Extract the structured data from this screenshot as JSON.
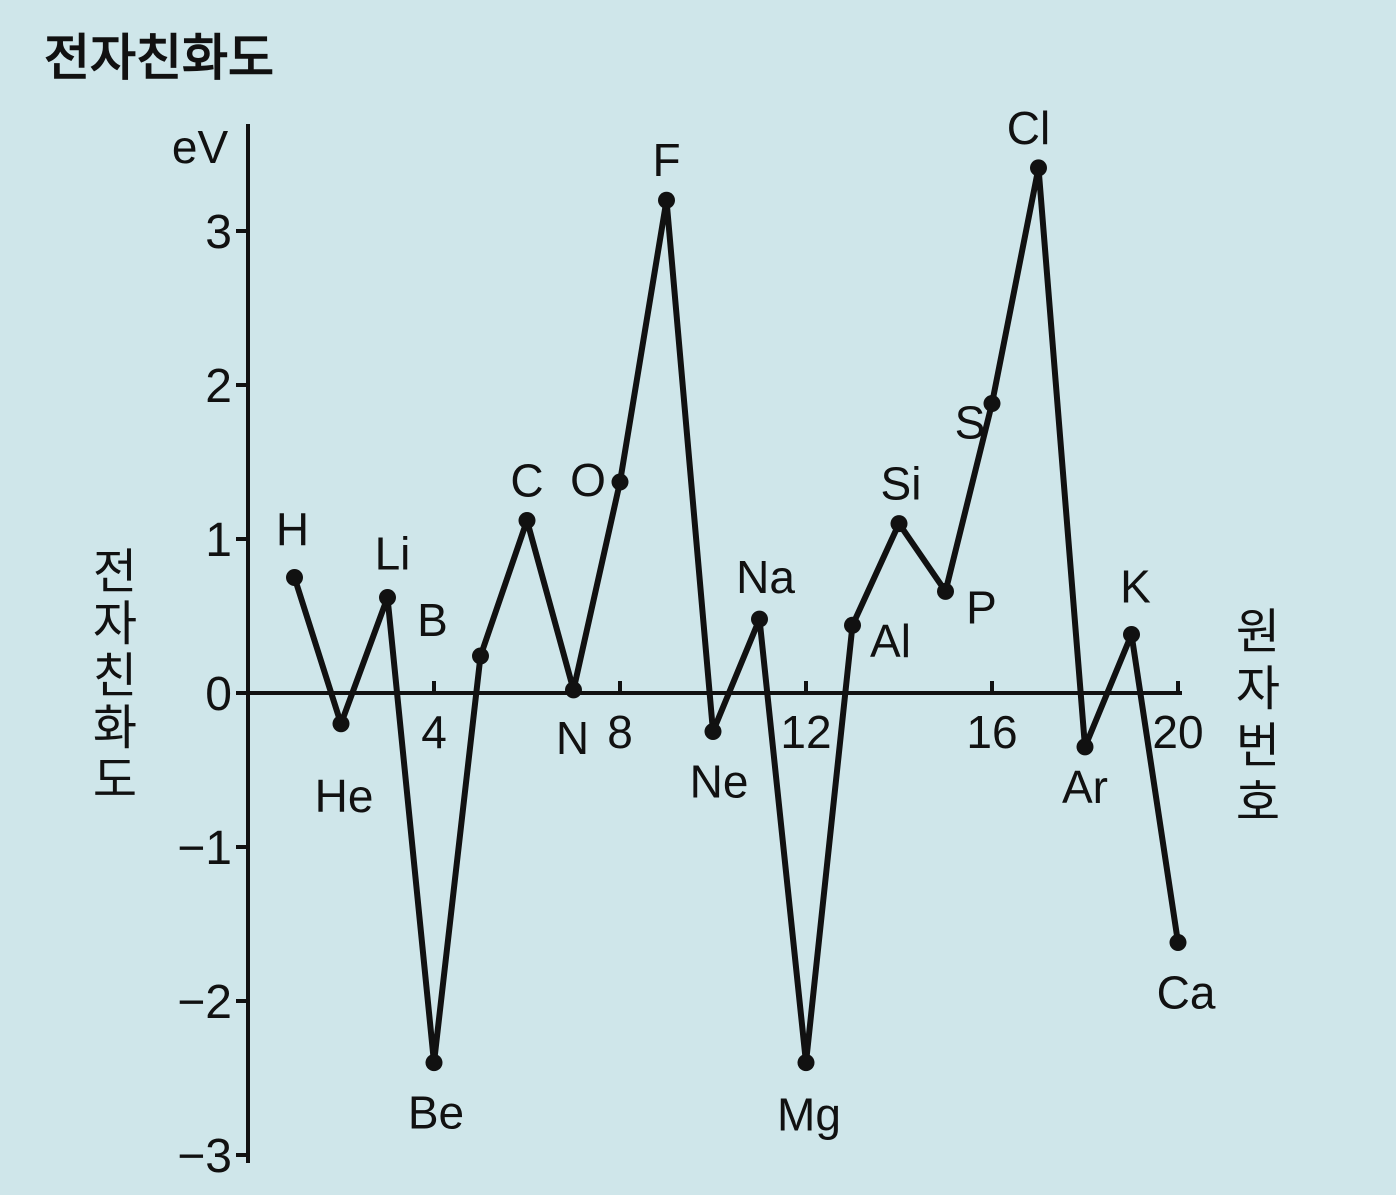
{
  "chart_data": {
    "type": "line",
    "title": "전자친화도",
    "ylabel": "전자친화도",
    "xlabel": "원자번호",
    "y_unit": "eV",
    "xlim": [
      0,
      20
    ],
    "ylim": [
      -3,
      3.5
    ],
    "x_ticks": [
      4,
      8,
      12,
      16,
      20
    ],
    "y_ticks": [
      3,
      2,
      1,
      0,
      -1,
      -2,
      -3
    ],
    "y_tick_labels": [
      "3",
      "2",
      "1",
      "0",
      "−1",
      "−2",
      "−3"
    ],
    "grid": false,
    "series": [
      {
        "points": [
          {
            "x": 1,
            "y": 0.75,
            "label": "H"
          },
          {
            "x": 2,
            "y": -0.2,
            "label": "He"
          },
          {
            "x": 3,
            "y": 0.62,
            "label": "Li"
          },
          {
            "x": 4,
            "y": -2.4,
            "label": "Be"
          },
          {
            "x": 5,
            "y": 0.24,
            "label": "B"
          },
          {
            "x": 6,
            "y": 1.12,
            "label": "C"
          },
          {
            "x": 7,
            "y": 0.02,
            "label": "N"
          },
          {
            "x": 8,
            "y": 1.37,
            "label": "O"
          },
          {
            "x": 9,
            "y": 3.2,
            "label": "F"
          },
          {
            "x": 10,
            "y": -0.25,
            "label": "Ne"
          },
          {
            "x": 11,
            "y": 0.48,
            "label": "Na"
          },
          {
            "x": 12,
            "y": -2.4,
            "label": "Mg"
          },
          {
            "x": 13,
            "y": 0.44,
            "label": "Al"
          },
          {
            "x": 14,
            "y": 1.1,
            "label": "Si"
          },
          {
            "x": 15,
            "y": 0.66,
            "label": "P"
          },
          {
            "x": 16,
            "y": 1.88,
            "label": "S"
          },
          {
            "x": 17,
            "y": 3.41,
            "label": "Cl"
          },
          {
            "x": 18,
            "y": -0.35,
            "label": "Ar"
          },
          {
            "x": 19,
            "y": 0.38,
            "label": "K"
          },
          {
            "x": 20,
            "y": -1.62,
            "label": "Ca"
          }
        ]
      }
    ]
  },
  "colors": {
    "background": "#cfe6ea",
    "ink": "#111111"
  }
}
